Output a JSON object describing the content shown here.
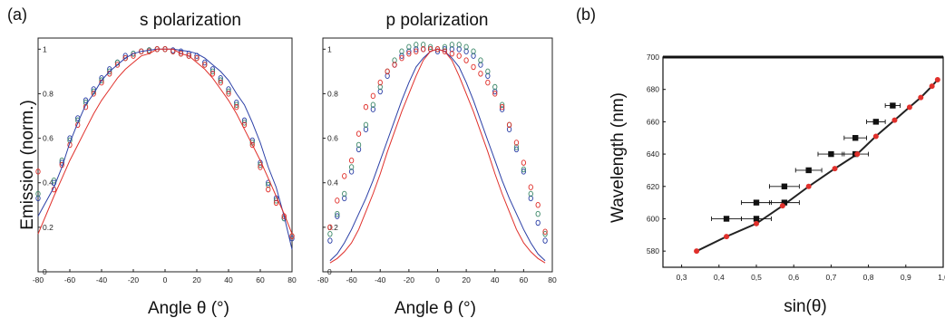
{
  "panel_labels": {
    "a": "(a)",
    "b": "(b)"
  },
  "colors": {
    "blue": "#2b3fa6",
    "green": "#3f8a6a",
    "red": "#e0302b",
    "black": "#111111"
  },
  "chart_data": [
    {
      "type": "scatter",
      "title": "s polarization",
      "xlabel": "Angle θ (°)",
      "ylabel": "Emission (norm.)",
      "xlim": [
        -80,
        80
      ],
      "ylim": [
        0,
        1.05
      ],
      "xticks": [
        -80,
        -60,
        -40,
        -20,
        0,
        20,
        40,
        60,
        80
      ],
      "yticks": [
        0,
        0.2,
        0.4,
        0.6,
        0.8,
        1
      ],
      "x": [
        -80,
        -70,
        -65,
        -60,
        -55,
        -50,
        -45,
        -40,
        -35,
        -30,
        -25,
        -20,
        -15,
        -10,
        -5,
        0,
        5,
        10,
        15,
        20,
        25,
        30,
        35,
        40,
        45,
        50,
        55,
        60,
        65,
        70,
        75,
        80
      ],
      "series": [
        {
          "color": "blue",
          "kind": "points",
          "values": [
            0.33,
            0.4,
            0.49,
            0.6,
            0.69,
            0.77,
            0.82,
            0.87,
            0.91,
            0.94,
            0.97,
            0.98,
            0.99,
            0.995,
            1.0,
            1.0,
            0.995,
            0.99,
            0.98,
            0.97,
            0.94,
            0.91,
            0.87,
            0.82,
            0.76,
            0.68,
            0.59,
            0.49,
            0.4,
            0.33,
            0.24,
            0.15
          ]
        },
        {
          "color": "green",
          "kind": "points",
          "values": [
            0.35,
            0.41,
            0.5,
            0.59,
            0.68,
            0.76,
            0.81,
            0.86,
            0.9,
            0.94,
            0.96,
            0.98,
            0.99,
            0.995,
            1.0,
            1.0,
            0.99,
            0.98,
            0.97,
            0.96,
            0.93,
            0.9,
            0.86,
            0.81,
            0.75,
            0.67,
            0.58,
            0.48,
            0.39,
            0.32,
            0.24,
            0.16
          ]
        },
        {
          "color": "red",
          "kind": "points",
          "values": [
            0.45,
            0.37,
            0.48,
            0.57,
            0.66,
            0.74,
            0.8,
            0.85,
            0.89,
            0.93,
            0.96,
            0.97,
            0.99,
            0.99,
            1.0,
            1.0,
            0.99,
            0.98,
            0.97,
            0.96,
            0.93,
            0.89,
            0.85,
            0.8,
            0.74,
            0.66,
            0.57,
            0.47,
            0.37,
            0.31,
            0.25,
            0.16
          ]
        },
        {
          "color": "blue",
          "kind": "line",
          "formula": "cos^0.8",
          "values": [
            0.25,
            0.38,
            0.47,
            0.58,
            0.67,
            0.75,
            0.8,
            0.86,
            0.9,
            0.93,
            0.96,
            0.98,
            0.99,
            0.995,
            1.0,
            1.0,
            1.0,
            0.995,
            0.99,
            0.98,
            0.96,
            0.93,
            0.9,
            0.86,
            0.8,
            0.75,
            0.67,
            0.58,
            0.47,
            0.38,
            0.25,
            0.1
          ]
        },
        {
          "color": "red",
          "kind": "line",
          "formula": "cos^1",
          "values": [
            0.17,
            0.34,
            0.42,
            0.5,
            0.57,
            0.64,
            0.71,
            0.77,
            0.82,
            0.87,
            0.91,
            0.94,
            0.97,
            0.98,
            1.0,
            1.0,
            1.0,
            0.98,
            0.97,
            0.94,
            0.91,
            0.87,
            0.82,
            0.77,
            0.71,
            0.64,
            0.57,
            0.5,
            0.42,
            0.34,
            0.26,
            0.17
          ]
        }
      ]
    },
    {
      "type": "scatter",
      "title": "p polarization",
      "xlabel": "Angle θ (°)",
      "ylabel": "",
      "xlim": [
        -80,
        80
      ],
      "ylim": [
        0,
        1.05
      ],
      "xticks": [
        -80,
        -60,
        -40,
        -20,
        0,
        20,
        40,
        60,
        80
      ],
      "yticks": [
        0,
        0.2,
        0.4,
        0.6,
        0.8,
        1
      ],
      "x": [
        -75,
        -70,
        -65,
        -60,
        -55,
        -50,
        -45,
        -40,
        -35,
        -30,
        -25,
        -20,
        -15,
        -10,
        -5,
        0,
        5,
        10,
        15,
        20,
        25,
        30,
        35,
        40,
        45,
        50,
        55,
        60,
        65,
        70,
        75
      ],
      "series": [
        {
          "color": "blue",
          "kind": "points",
          "values": [
            0.14,
            0.25,
            0.33,
            0.45,
            0.55,
            0.64,
            0.73,
            0.81,
            0.88,
            0.93,
            0.97,
            0.99,
            1.0,
            1.0,
            1.0,
            0.99,
            1.0,
            1.0,
            1.0,
            0.99,
            0.97,
            0.93,
            0.88,
            0.81,
            0.73,
            0.64,
            0.55,
            0.45,
            0.33,
            0.22,
            0.14
          ]
        },
        {
          "color": "green",
          "kind": "points",
          "values": [
            0.17,
            0.26,
            0.35,
            0.47,
            0.57,
            0.66,
            0.75,
            0.83,
            0.9,
            0.95,
            0.99,
            1.01,
            1.02,
            1.02,
            1.01,
            1.0,
            1.01,
            1.02,
            1.02,
            1.01,
            0.99,
            0.95,
            0.9,
            0.83,
            0.75,
            0.66,
            0.56,
            0.46,
            0.35,
            0.26,
            0.17
          ]
        },
        {
          "color": "red",
          "kind": "points",
          "values": [
            0.2,
            0.32,
            0.43,
            0.5,
            0.62,
            0.74,
            0.79,
            0.85,
            0.9,
            0.93,
            0.96,
            0.98,
            0.99,
            1.0,
            1.0,
            1.0,
            0.99,
            0.98,
            0.97,
            0.95,
            0.92,
            0.89,
            0.85,
            0.8,
            0.74,
            0.66,
            0.58,
            0.49,
            0.38,
            0.3,
            0.18
          ]
        },
        {
          "color": "blue",
          "kind": "line",
          "formula": "cos^2.6",
          "values": [
            0.05,
            0.08,
            0.13,
            0.19,
            0.26,
            0.33,
            0.41,
            0.5,
            0.59,
            0.68,
            0.77,
            0.85,
            0.92,
            0.96,
            0.99,
            1.0,
            0.99,
            0.96,
            0.92,
            0.85,
            0.77,
            0.68,
            0.59,
            0.5,
            0.41,
            0.33,
            0.26,
            0.19,
            0.13,
            0.08,
            0.05
          ]
        },
        {
          "color": "red",
          "kind": "line",
          "formula": "cos^3",
          "values": [
            0.04,
            0.06,
            0.09,
            0.13,
            0.19,
            0.27,
            0.35,
            0.44,
            0.54,
            0.63,
            0.72,
            0.8,
            0.88,
            0.95,
            0.99,
            1.0,
            0.99,
            0.95,
            0.88,
            0.8,
            0.72,
            0.63,
            0.54,
            0.44,
            0.35,
            0.27,
            0.19,
            0.13,
            0.09,
            0.06,
            0.04
          ]
        }
      ]
    },
    {
      "type": "scatter",
      "title": "",
      "xlabel": "sin(θ)",
      "ylabel": "Wavelength (nm)",
      "xlim": [
        0.25,
        1.0
      ],
      "ylim": [
        570,
        700
      ],
      "xticks": [
        0.3,
        0.4,
        0.5,
        0.6,
        0.7,
        0.8,
        0.9,
        1.0
      ],
      "xticklabels": [
        "0,3",
        "0,4",
        "0,5",
        "0,6",
        "0,7",
        "0,8",
        "0,9",
        "1,0"
      ],
      "yticks": [
        580,
        600,
        620,
        640,
        660,
        680,
        700
      ],
      "series": [
        {
          "color": "red",
          "kind": "line+points",
          "x": [
            0.34,
            0.42,
            0.5,
            0.57,
            0.64,
            0.71,
            0.77,
            0.82,
            0.87,
            0.91,
            0.94,
            0.97,
            0.985
          ],
          "y": [
            580,
            589,
            597,
            608,
            620,
            631,
            640,
            651,
            661,
            669,
            675,
            682,
            686
          ]
        },
        {
          "color": "black",
          "kind": "squares-with-xerr",
          "x": [
            0.42,
            0.5,
            0.5,
            0.575,
            0.575,
            0.64,
            0.7,
            0.765,
            0.765,
            0.82,
            0.865
          ],
          "y": [
            600,
            600,
            610,
            610,
            620,
            630,
            640,
            640,
            650,
            660,
            670
          ],
          "xerr": [
            0.04,
            0.04,
            0.04,
            0.04,
            0.04,
            0.035,
            0.035,
            0.035,
            0.03,
            0.025,
            0.02
          ]
        }
      ]
    }
  ]
}
